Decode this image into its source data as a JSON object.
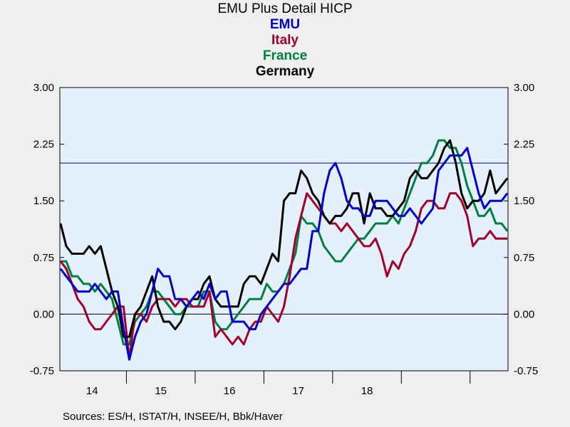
{
  "chart_data": {
    "type": "line",
    "title": "EMU Plus Detail HICP",
    "legend": [
      {
        "label": "EMU",
        "color": "#0000cc"
      },
      {
        "label": "Italy",
        "color": "#a0002a"
      },
      {
        "label": "France",
        "color": "#008040"
      },
      {
        "label": "Germany",
        "color": "#000000"
      }
    ],
    "ylim": [
      -0.75,
      3.0
    ],
    "yticks": [
      "3.00",
      "2.25",
      "1.50",
      "0.75",
      "0.00",
      "-0.75"
    ],
    "xlabels": [
      "14",
      "15",
      "16",
      "17",
      "18"
    ],
    "x_start_year": 2014,
    "reference_line": 2.0,
    "grid": false,
    "series": [
      {
        "name": "EMU",
        "color": "#0000cc",
        "values": [
          0.6,
          0.5,
          0.4,
          0.3,
          0.3,
          0.3,
          0.4,
          0.3,
          0.2,
          0.3,
          0.3,
          -0.2,
          -0.6,
          -0.3,
          -0.1,
          0.0,
          0.3,
          0.6,
          0.5,
          0.5,
          0.2,
          0.2,
          0.1,
          0.2,
          0.3,
          0.2,
          0.4,
          0.2,
          0.3,
          0.3,
          -0.1,
          -0.1,
          -0.1,
          -0.2,
          -0.2,
          0.0,
          0.1,
          0.2,
          0.3,
          0.4,
          0.4,
          0.5,
          0.6,
          0.6,
          1.1,
          1.1,
          1.6,
          1.9,
          2.0,
          1.8,
          1.5,
          1.4,
          1.4,
          1.3,
          1.3,
          1.5,
          1.5,
          1.5,
          1.4,
          1.3,
          1.3,
          1.4,
          1.3,
          1.2,
          1.3,
          1.4,
          1.9,
          2.0,
          2.1,
          2.1,
          2.1,
          2.2,
          1.9,
          1.6,
          1.4,
          1.5,
          1.5,
          1.5,
          1.6
        ]
      },
      {
        "name": "Italy",
        "color": "#a0002a",
        "values": [
          0.7,
          0.6,
          0.4,
          0.2,
          0.1,
          -0.1,
          -0.2,
          -0.2,
          -0.1,
          0.0,
          0.1,
          0.1,
          -0.6,
          0.0,
          0.0,
          -0.1,
          0.1,
          0.2,
          0.2,
          0.2,
          0.1,
          0.2,
          0.2,
          0.1,
          0.1,
          0.1,
          0.3,
          -0.3,
          -0.2,
          -0.3,
          -0.4,
          -0.3,
          -0.4,
          -0.2,
          -0.1,
          -0.1,
          0.1,
          0.0,
          -0.1,
          0.1,
          0.5,
          1.0,
          1.3,
          1.6,
          1.5,
          1.4,
          1.3,
          1.2,
          1.2,
          1.1,
          1.2,
          1.1,
          1.0,
          0.9,
          0.9,
          1.0,
          0.8,
          0.5,
          0.7,
          0.6,
          0.8,
          0.9,
          1.1,
          1.4,
          1.5,
          1.5,
          1.4,
          1.4,
          1.6,
          1.6,
          1.5,
          1.3,
          0.9,
          1.0,
          1.0,
          1.1,
          1.0,
          1.0,
          1.0
        ]
      },
      {
        "name": "France",
        "color": "#008040",
        "values": [
          0.7,
          0.7,
          0.5,
          0.5,
          0.4,
          0.4,
          0.3,
          0.4,
          0.3,
          0.2,
          -0.1,
          -0.4,
          -0.4,
          -0.1,
          0.0,
          0.1,
          0.3,
          0.3,
          0.2,
          0.1,
          0.0,
          0.0,
          0.1,
          0.1,
          0.1,
          0.3,
          0.3,
          -0.1,
          -0.2,
          -0.2,
          -0.1,
          0.0,
          0.1,
          0.2,
          0.2,
          0.2,
          0.4,
          0.3,
          0.3,
          0.4,
          0.6,
          0.8,
          1.3,
          1.2,
          1.2,
          1.1,
          0.9,
          0.8,
          0.7,
          0.7,
          0.8,
          0.9,
          1.0,
          1.0,
          1.1,
          1.2,
          1.2,
          1.2,
          1.3,
          1.2,
          1.4,
          1.6,
          1.8,
          2.0,
          2.0,
          2.1,
          2.3,
          2.3,
          2.2,
          2.2,
          2.0,
          1.7,
          1.5,
          1.3,
          1.3,
          1.4,
          1.2,
          1.2,
          1.1
        ]
      },
      {
        "name": "Germany",
        "color": "#000000",
        "values": [
          1.2,
          0.9,
          0.8,
          0.8,
          0.8,
          0.9,
          0.8,
          0.9,
          0.6,
          0.3,
          0.1,
          -0.3,
          -0.3,
          0.0,
          0.1,
          0.3,
          0.5,
          0.1,
          -0.1,
          -0.1,
          -0.2,
          -0.1,
          0.1,
          0.2,
          0.2,
          0.4,
          0.5,
          0.2,
          0.1,
          0.1,
          0.1,
          0.1,
          0.4,
          0.5,
          0.5,
          0.4,
          0.6,
          0.8,
          0.7,
          1.5,
          1.6,
          1.6,
          1.9,
          1.8,
          1.6,
          1.5,
          1.3,
          1.2,
          1.3,
          1.3,
          1.4,
          1.6,
          1.6,
          1.2,
          1.6,
          1.4,
          1.4,
          1.3,
          1.3,
          1.4,
          1.5,
          1.8,
          1.9,
          1.8,
          1.8,
          1.9,
          2.0,
          2.2,
          2.3,
          2.0,
          1.6,
          1.4,
          1.5,
          1.5,
          1.6,
          1.9,
          1.6,
          1.7,
          1.8
        ]
      }
    ]
  },
  "source_text": "Sources:  ES/H, ISTAT/H, INSEE/H, Bbk/Haver"
}
